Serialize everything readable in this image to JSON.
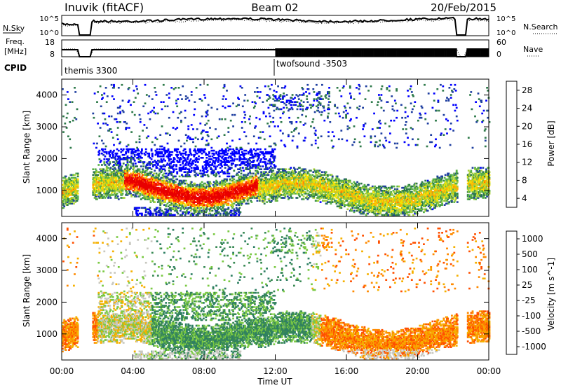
{
  "header": {
    "station": "Inuvik (fitACF)",
    "beam": "Beam 02",
    "date": "20/Feb/2015"
  },
  "params": {
    "nsky_label": "N.Sky",
    "nsearch_label": "N.Search",
    "freq_label_1": "Freq.",
    "freq_label_2": "[MHz]",
    "nave_label": "Nave",
    "cpid_label": "CPID",
    "nsky_ticks": [
      "10^5",
      "10^0"
    ],
    "nsearch_ticks": [
      "10^5",
      "10^0"
    ],
    "freq_ticks": [
      "18",
      "8"
    ],
    "nave_ticks": [
      "60",
      "0"
    ],
    "cpid_segments": [
      {
        "start_hour": 0.0,
        "name": "themis 3300"
      },
      {
        "start_hour": 12.0,
        "name": "twofsound -3503"
      }
    ]
  },
  "chart_data": [
    {
      "type": "heatmap",
      "name": "power",
      "xlabel": "",
      "ylabel": "Slant Range [km]",
      "xlim": [
        0,
        24
      ],
      "ylim": [
        180,
        4500
      ],
      "yticks": [
        "1000",
        "2000",
        "3000",
        "4000"
      ],
      "colorbar_label": "Power [dB]",
      "colorbar_ticks": [
        "28",
        "24",
        "20",
        "16",
        "12",
        "8",
        "4"
      ],
      "colors": [
        "#0000ff",
        "#1f3fa0",
        "#2e7a4a",
        "#57b047",
        "#a8d13a",
        "#f5e300",
        "#ffb000",
        "#ff7000",
        "#ff2400",
        "#e80000"
      ],
      "gaps_hours": [
        [
          0.9,
          1.7
        ],
        [
          22.2,
          22.75
        ]
      ]
    },
    {
      "type": "heatmap",
      "name": "velocity",
      "xlabel": "Time UT",
      "ylabel": "Slant Range [km]",
      "xlim": [
        0,
        24
      ],
      "ylim": [
        180,
        4500
      ],
      "yticks": [
        "1000",
        "2000",
        "3000",
        "4000"
      ],
      "xticks": [
        "00:00",
        "04:00",
        "08:00",
        "12:00",
        "16:00",
        "20:00",
        "00:00"
      ],
      "colorbar_label": "Velocity [m s^-1]",
      "colorbar_ticks": [
        "1000",
        "500",
        "100",
        "25",
        "-25",
        "-100",
        "-500",
        "-1000"
      ],
      "colors": [
        "#1a3fb0",
        "#2e7f63",
        "#3a8a55",
        "#7ac943",
        "#c8c8c0",
        "#f5b000",
        "#ff8a00",
        "#ff5000",
        "#ff0000"
      ],
      "gaps_hours": [
        [
          0.9,
          1.7
        ],
        [
          22.2,
          22.75
        ]
      ]
    }
  ]
}
